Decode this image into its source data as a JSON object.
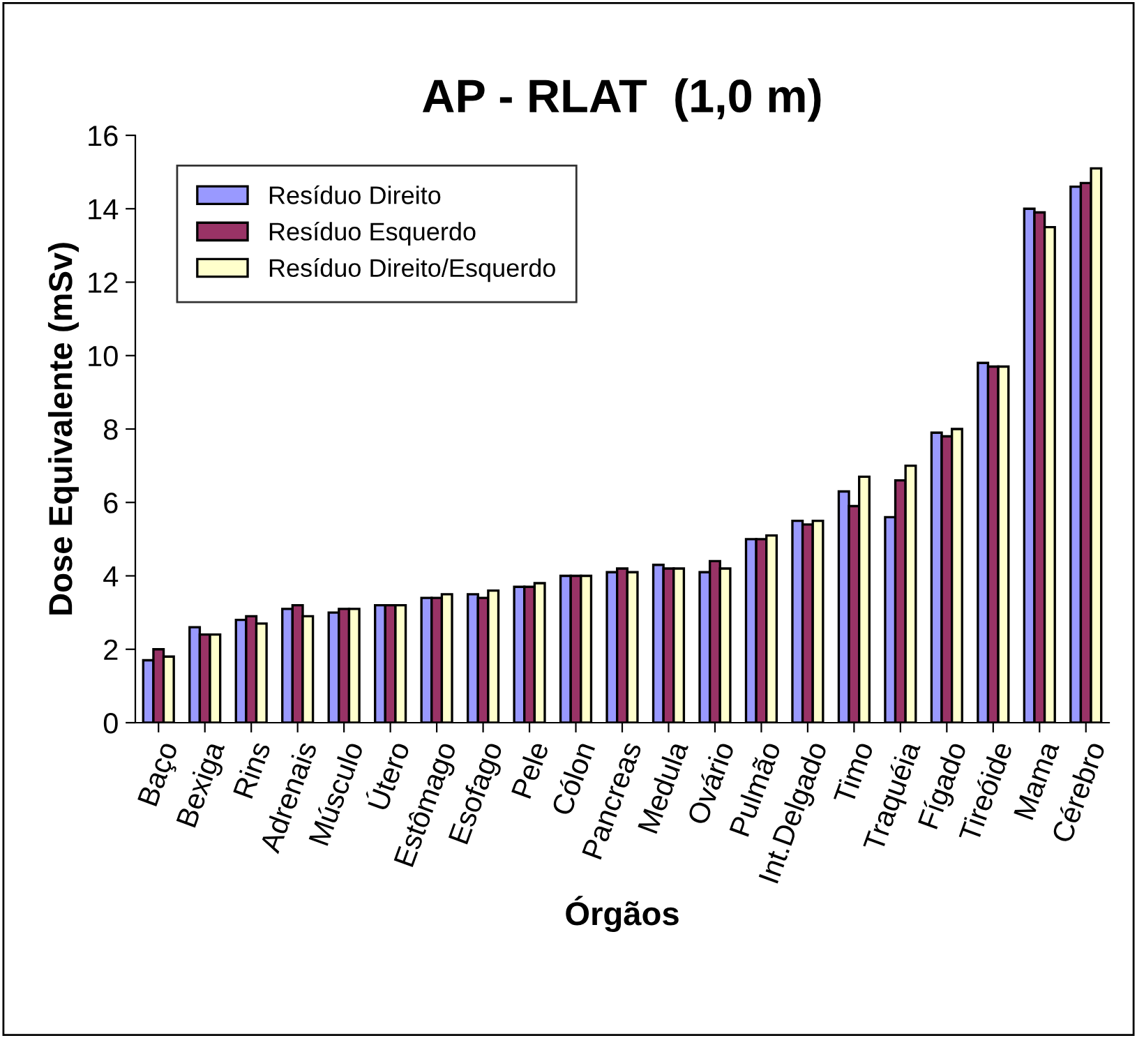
{
  "chart_data": {
    "type": "bar",
    "title": "AP - RLAT  (1,0 m)",
    "xlabel": "Órgãos",
    "ylabel": "Dose Equivalente (mSv)",
    "categories": [
      "Baço",
      "Bexiga",
      "Rins",
      "Adrenais",
      "Músculo",
      "Útero",
      "Estômago",
      "Esofago",
      "Pele",
      "Cólon",
      "Pancreas",
      "Medula",
      "Ovário",
      "Pulmão",
      "Int.Delgado",
      "Timo",
      "Traquéia",
      "Fígado",
      "Tireóide",
      "Mama",
      "Cérebro"
    ],
    "series": [
      {
        "name": "Resíduo Direito",
        "color": "#9999ff",
        "values": [
          1.7,
          2.6,
          2.8,
          3.1,
          3.0,
          3.2,
          3.4,
          3.5,
          3.7,
          4.0,
          4.1,
          4.3,
          4.1,
          5.0,
          5.5,
          6.3,
          5.6,
          7.9,
          9.8,
          14.0,
          14.6
        ]
      },
      {
        "name": "Resíduo Esquerdo",
        "color": "#993366",
        "values": [
          2.0,
          2.4,
          2.9,
          3.2,
          3.1,
          3.2,
          3.4,
          3.4,
          3.7,
          4.0,
          4.2,
          4.2,
          4.4,
          5.0,
          5.4,
          5.9,
          6.6,
          7.8,
          9.7,
          13.9,
          14.7
        ]
      },
      {
        "name": "Resíduo Direito/Esquerdo",
        "color": "#ffffcc",
        "values": [
          1.8,
          2.4,
          2.7,
          2.9,
          3.1,
          3.2,
          3.5,
          3.6,
          3.8,
          4.0,
          4.1,
          4.2,
          4.2,
          5.1,
          5.5,
          6.7,
          7.0,
          8.0,
          9.7,
          13.5,
          15.1
        ]
      }
    ],
    "ylim": [
      0,
      16
    ],
    "yticks": [
      0,
      2,
      4,
      6,
      8,
      10,
      12,
      14,
      16
    ],
    "grid": false,
    "legend": "top left"
  }
}
